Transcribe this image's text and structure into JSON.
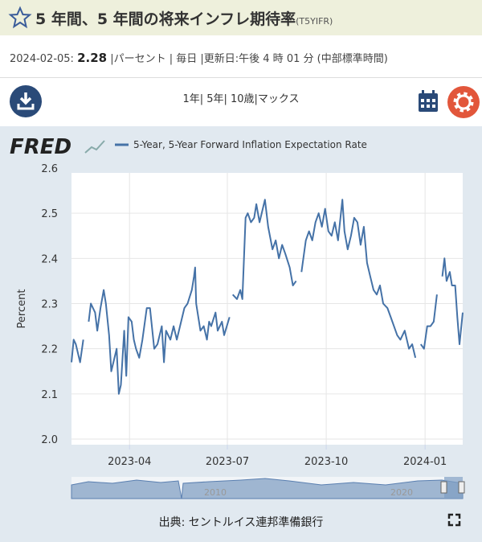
{
  "header": {
    "title": "5 年間、5 年間の将来インフレ期待率",
    "code": "(T5YIFR)"
  },
  "info": {
    "date": "2024-02-05:",
    "value": "2.28",
    "details": "|パーセント | 毎日 |更新日:午後 4 時 01 分 (中部標準時間)"
  },
  "toolbar": {
    "ranges": "1年| 5年| 10歳|マックス"
  },
  "logo": "FRED",
  "navigator": {
    "labels": [
      "2010",
      "2020"
    ]
  },
  "source": "出典: セントルイス連邦準備銀行",
  "chart_data": {
    "type": "line",
    "y_label": "Percent",
    "xlim": [
      "2023-02-06",
      "2024-02-05"
    ],
    "xticks": [
      {
        "value": "2023-04-01",
        "label": "2023-04"
      },
      {
        "value": "2023-07-01",
        "label": "2023-07"
      },
      {
        "value": "2023-10-01",
        "label": "2023-10"
      },
      {
        "value": "2024-01-01",
        "label": "2024-01"
      }
    ],
    "ylim": [
      2.0,
      2.6
    ],
    "yticks": [
      {
        "value": 2.0,
        "label": "2.0"
      },
      2.1,
      2.2,
      2.3,
      2.4,
      2.5,
      2.6
    ],
    "grid": true,
    "series": [
      {
        "name": "5-Year, 5-Year Forward Inflation Expectation Rate",
        "color": "#4572a7",
        "x": [
          "2023-02-06",
          "2023-02-08",
          "2023-02-10",
          "2023-02-14",
          "2023-02-17",
          "2023-02-20",
          "2023-02-22",
          "2023-02-24",
          "2023-02-28",
          "2023-03-02",
          "2023-03-05",
          "2023-03-08",
          "2023-03-10",
          "2023-03-13",
          "2023-03-15",
          "2023-03-17",
          "2023-03-20",
          "2023-03-22",
          "2023-03-24",
          "2023-03-27",
          "2023-03-29",
          "2023-03-31",
          "2023-04-03",
          "2023-04-05",
          "2023-04-07",
          "2023-04-10",
          "2023-04-13",
          "2023-04-17",
          "2023-04-20",
          "2023-04-24",
          "2023-04-27",
          "2023-05-01",
          "2023-05-03",
          "2023-05-05",
          "2023-05-09",
          "2023-05-12",
          "2023-05-15",
          "2023-05-18",
          "2023-05-22",
          "2023-05-25",
          "2023-05-29",
          "2023-05-31",
          "2023-06-01",
          "2023-06-02",
          "2023-06-06",
          "2023-06-09",
          "2023-06-12",
          "2023-06-14",
          "2023-06-16",
          "2023-06-20",
          "2023-06-22",
          "2023-06-26",
          "2023-06-28",
          "2023-07-03",
          "2023-07-04",
          "2023-07-06",
          "2023-07-10",
          "2023-07-13",
          "2023-07-15",
          "2023-07-18",
          "2023-07-20",
          "2023-07-23",
          "2023-07-26",
          "2023-07-28",
          "2023-07-31",
          "2023-08-03",
          "2023-08-05",
          "2023-08-08",
          "2023-08-12",
          "2023-08-15",
          "2023-08-18",
          "2023-08-21",
          "2023-08-24",
          "2023-08-28",
          "2023-08-31",
          "2023-09-03",
          "2023-09-05",
          "2023-09-08",
          "2023-09-12",
          "2023-09-15",
          "2023-09-18",
          "2023-09-21",
          "2023-09-24",
          "2023-09-27",
          "2023-09-30",
          "2023-10-03",
          "2023-10-06",
          "2023-10-09",
          "2023-10-12",
          "2023-10-16",
          "2023-10-18",
          "2023-10-21",
          "2023-10-24",
          "2023-10-27",
          "2023-10-30",
          "2023-11-02",
          "2023-11-05",
          "2023-11-08",
          "2023-11-11",
          "2023-11-14",
          "2023-11-17",
          "2023-11-20",
          "2023-11-23",
          "2023-11-27",
          "2023-11-30",
          "2023-12-03",
          "2023-12-06",
          "2023-12-09",
          "2023-12-13",
          "2023-12-17",
          "2023-12-20",
          "2023-12-23",
          "2023-12-26",
          "2023-12-28",
          "2023-12-31",
          "2024-01-03",
          "2024-01-06",
          "2024-01-09",
          "2024-01-12",
          "2024-01-15",
          "2024-01-17",
          "2024-01-19",
          "2024-01-21",
          "2024-01-24",
          "2024-01-26",
          "2024-01-29",
          "2024-01-31",
          "2024-02-02",
          "2024-02-05"
        ],
        "values": [
          2.17,
          2.22,
          2.21,
          2.17,
          2.22,
          null,
          2.26,
          2.3,
          2.28,
          2.24,
          2.29,
          2.33,
          2.3,
          2.23,
          2.15,
          2.17,
          2.2,
          2.1,
          2.12,
          2.24,
          2.14,
          2.27,
          2.26,
          2.22,
          2.2,
          2.18,
          2.22,
          2.29,
          2.29,
          2.2,
          2.21,
          2.25,
          2.17,
          2.24,
          2.22,
          2.25,
          2.22,
          2.25,
          2.29,
          2.3,
          2.33,
          2.36,
          2.38,
          2.3,
          2.24,
          2.25,
          2.22,
          2.26,
          2.25,
          2.28,
          2.24,
          2.26,
          2.23,
          2.27,
          null,
          2.32,
          2.31,
          2.33,
          2.31,
          2.49,
          2.5,
          2.48,
          2.49,
          2.52,
          2.48,
          2.51,
          2.53,
          2.47,
          2.42,
          2.44,
          2.4,
          2.43,
          2.41,
          2.38,
          2.34,
          2.35,
          null,
          2.37,
          2.44,
          2.46,
          2.44,
          2.48,
          2.5,
          2.47,
          2.51,
          2.46,
          2.45,
          2.48,
          2.44,
          2.53,
          2.46,
          2.42,
          2.45,
          2.49,
          2.48,
          2.43,
          2.47,
          2.39,
          2.36,
          2.33,
          2.32,
          2.34,
          2.3,
          2.29,
          2.27,
          2.25,
          2.23,
          2.22,
          2.24,
          2.2,
          2.21,
          2.18,
          null,
          2.21,
          2.2,
          2.25,
          2.25,
          2.26,
          2.32,
          null,
          2.36,
          2.4,
          2.35,
          2.37,
          2.34,
          2.34,
          2.27,
          2.21,
          2.28
        ]
      }
    ]
  }
}
